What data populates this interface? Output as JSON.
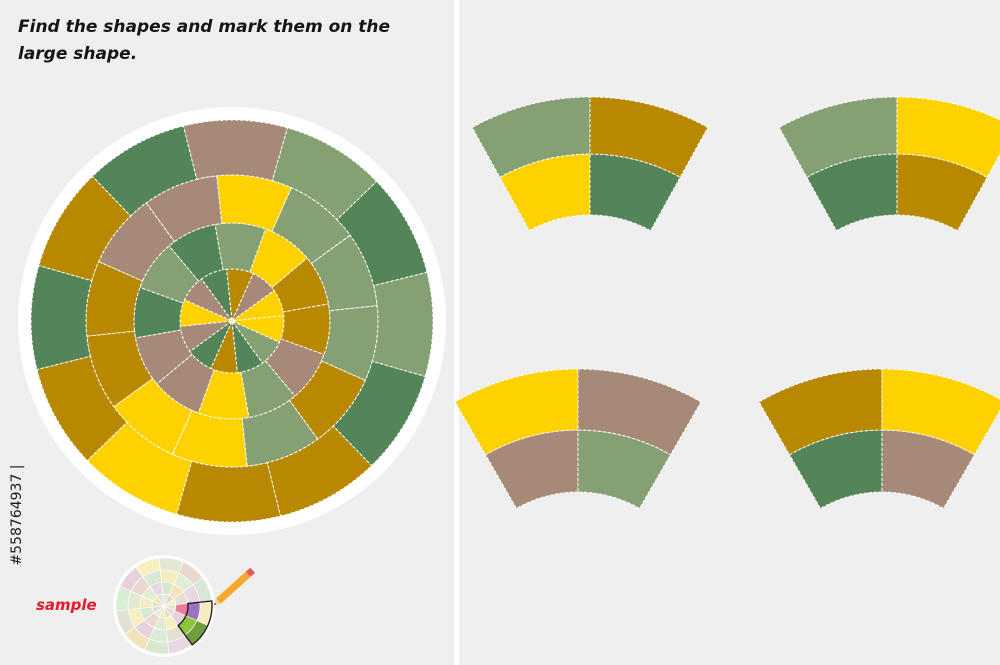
{
  "instruction": "Find the shapes and mark them on the large shape.",
  "sample_label": "sample",
  "stock_id": "558764937",
  "id_prefix": "#",
  "id_separator": "|",
  "colors": {
    "background": "#efefef",
    "divider": "#ffffff",
    "outline": "#ffffff",
    "dark_green": "#538559",
    "sage_green": "#85a072",
    "mustard": "#b78800",
    "yellow": "#fed100",
    "taupe": "#a68a77",
    "sample_red": "#e8182c"
  },
  "wheel": {
    "ring_count": 4,
    "sector_count": 12,
    "ring_colors": [
      [
        "yellow",
        "taupe",
        "mustard",
        "dark_green",
        "taupe",
        "yellow",
        "taupe",
        "dark_green",
        "mustard",
        "dark_green",
        "sage_green",
        "yellow"
      ],
      [
        "mustard",
        "yellow",
        "sage_green",
        "dark_green",
        "sage_green",
        "dark_green",
        "taupe",
        "taupe",
        "yellow",
        "sage_green",
        "taupe",
        "mustard"
      ],
      [
        "sage_green",
        "sage_green",
        "yellow",
        "taupe",
        "taupe",
        "mustard",
        "mustard",
        "yellow",
        "yellow",
        "sage_green",
        "mustard",
        "sage_green"
      ],
      [
        "dark_green",
        "sage_green",
        "taupe",
        "dark_green",
        "mustard",
        "dark_green",
        "mustard",
        "yellow",
        "mustard",
        "mustard",
        "dark_green",
        "sage_green"
      ]
    ]
  },
  "pieces": [
    {
      "inner": [
        "yellow",
        "dark_green"
      ],
      "outer": [
        "sage_green",
        "mustard"
      ]
    },
    {
      "inner": [
        "dark_green",
        "mustard"
      ],
      "outer": [
        "sage_green",
        "yellow"
      ]
    },
    {
      "inner": [
        "taupe",
        "sage_green"
      ],
      "outer": [
        "yellow",
        "taupe"
      ]
    },
    {
      "inner": [
        "dark_green",
        "taupe"
      ],
      "outer": [
        "mustard",
        "yellow"
      ]
    }
  ],
  "sample": {
    "highlight_colors": [
      "#e97a9a",
      "#9b72c4",
      "#8cc63f",
      "#6f9f3a"
    ],
    "pencil_colors": [
      "#f7a92b",
      "#e85a5a"
    ]
  }
}
